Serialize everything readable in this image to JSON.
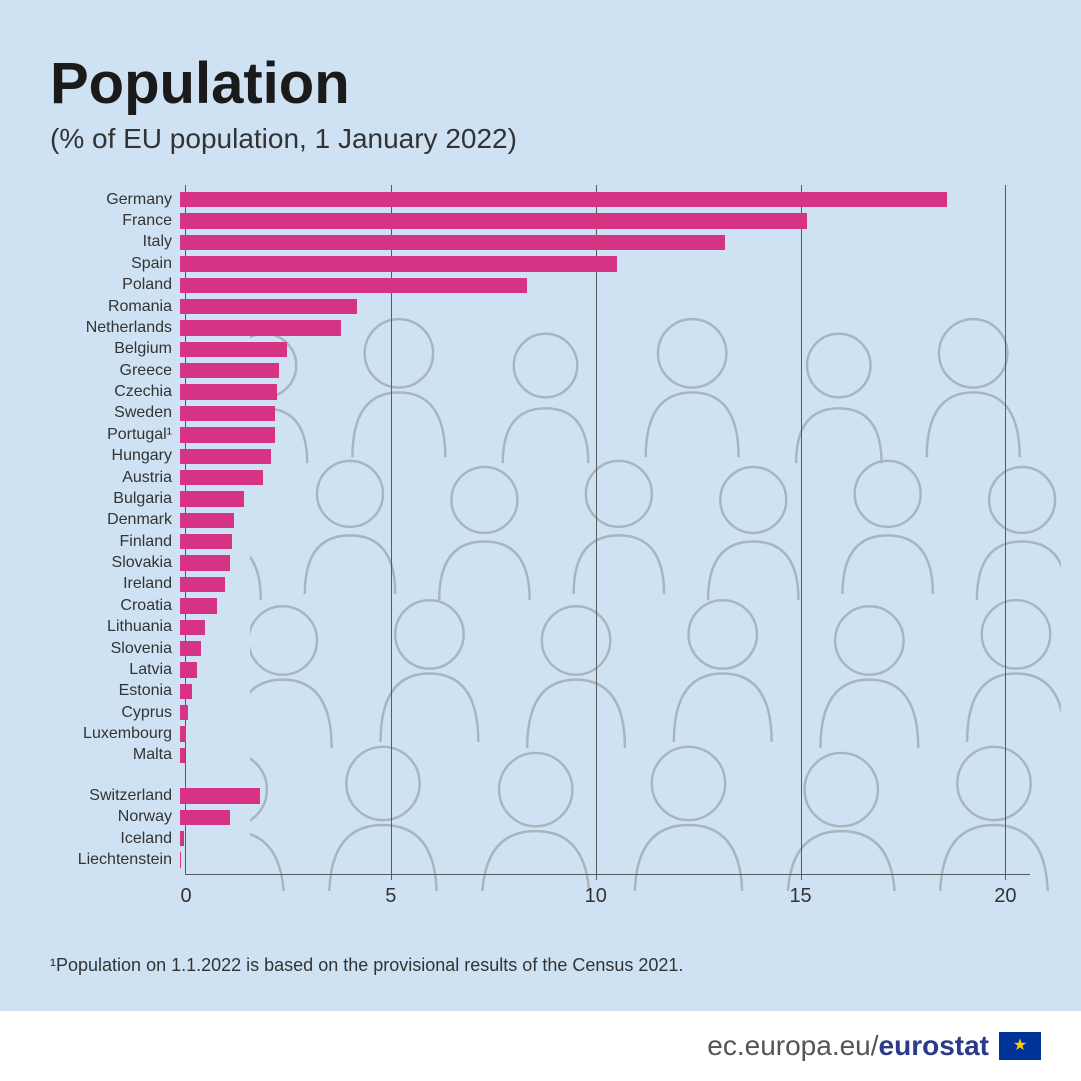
{
  "title": "Population",
  "subtitle": "(% of EU population, 1 January 2022)",
  "footnote": "¹Population on 1.1.2022 is based on the provisional results of the Census 2021.",
  "footer": {
    "url_prefix": "ec.europa.eu/",
    "url_bold": "eurostat"
  },
  "chart": {
    "type": "bar-horizontal",
    "background_color": "#cfe2f3",
    "bar_color": "#d63384",
    "grid_color": "#5a5a5a",
    "text_color": "#333333",
    "label_fontsize": 16,
    "tick_fontsize": 20,
    "xlim": [
      0,
      20.6
    ],
    "xticks": [
      0,
      5,
      10,
      15,
      20
    ],
    "groups": [
      {
        "items": [
          {
            "label": "Germany",
            "value": 18.6
          },
          {
            "label": "France",
            "value": 15.2
          },
          {
            "label": "Italy",
            "value": 13.2
          },
          {
            "label": "Spain",
            "value": 10.6
          },
          {
            "label": "Poland",
            "value": 8.4
          },
          {
            "label": "Romania",
            "value": 4.3
          },
          {
            "label": "Netherlands",
            "value": 3.9
          },
          {
            "label": "Belgium",
            "value": 2.6
          },
          {
            "label": "Greece",
            "value": 2.4
          },
          {
            "label": "Czechia",
            "value": 2.35
          },
          {
            "label": "Sweden",
            "value": 2.3
          },
          {
            "label": "Portugal¹",
            "value": 2.3
          },
          {
            "label": "Hungary",
            "value": 2.2
          },
          {
            "label": "Austria",
            "value": 2.0
          },
          {
            "label": "Bulgaria",
            "value": 1.55
          },
          {
            "label": "Denmark",
            "value": 1.3
          },
          {
            "label": "Finland",
            "value": 1.25
          },
          {
            "label": "Slovakia",
            "value": 1.2
          },
          {
            "label": "Ireland",
            "value": 1.1
          },
          {
            "label": "Croatia",
            "value": 0.9
          },
          {
            "label": "Lithuania",
            "value": 0.6
          },
          {
            "label": "Slovenia",
            "value": 0.5
          },
          {
            "label": "Latvia",
            "value": 0.4
          },
          {
            "label": "Estonia",
            "value": 0.3
          },
          {
            "label": "Cyprus",
            "value": 0.2
          },
          {
            "label": "Luxembourg",
            "value": 0.15
          },
          {
            "label": "Malta",
            "value": 0.12
          }
        ]
      },
      {
        "items": [
          {
            "label": "Switzerland",
            "value": 1.95
          },
          {
            "label": "Norway",
            "value": 1.2
          },
          {
            "label": "Iceland",
            "value": 0.1
          },
          {
            "label": "Liechtenstein",
            "value": 0.01
          }
        ]
      }
    ]
  }
}
